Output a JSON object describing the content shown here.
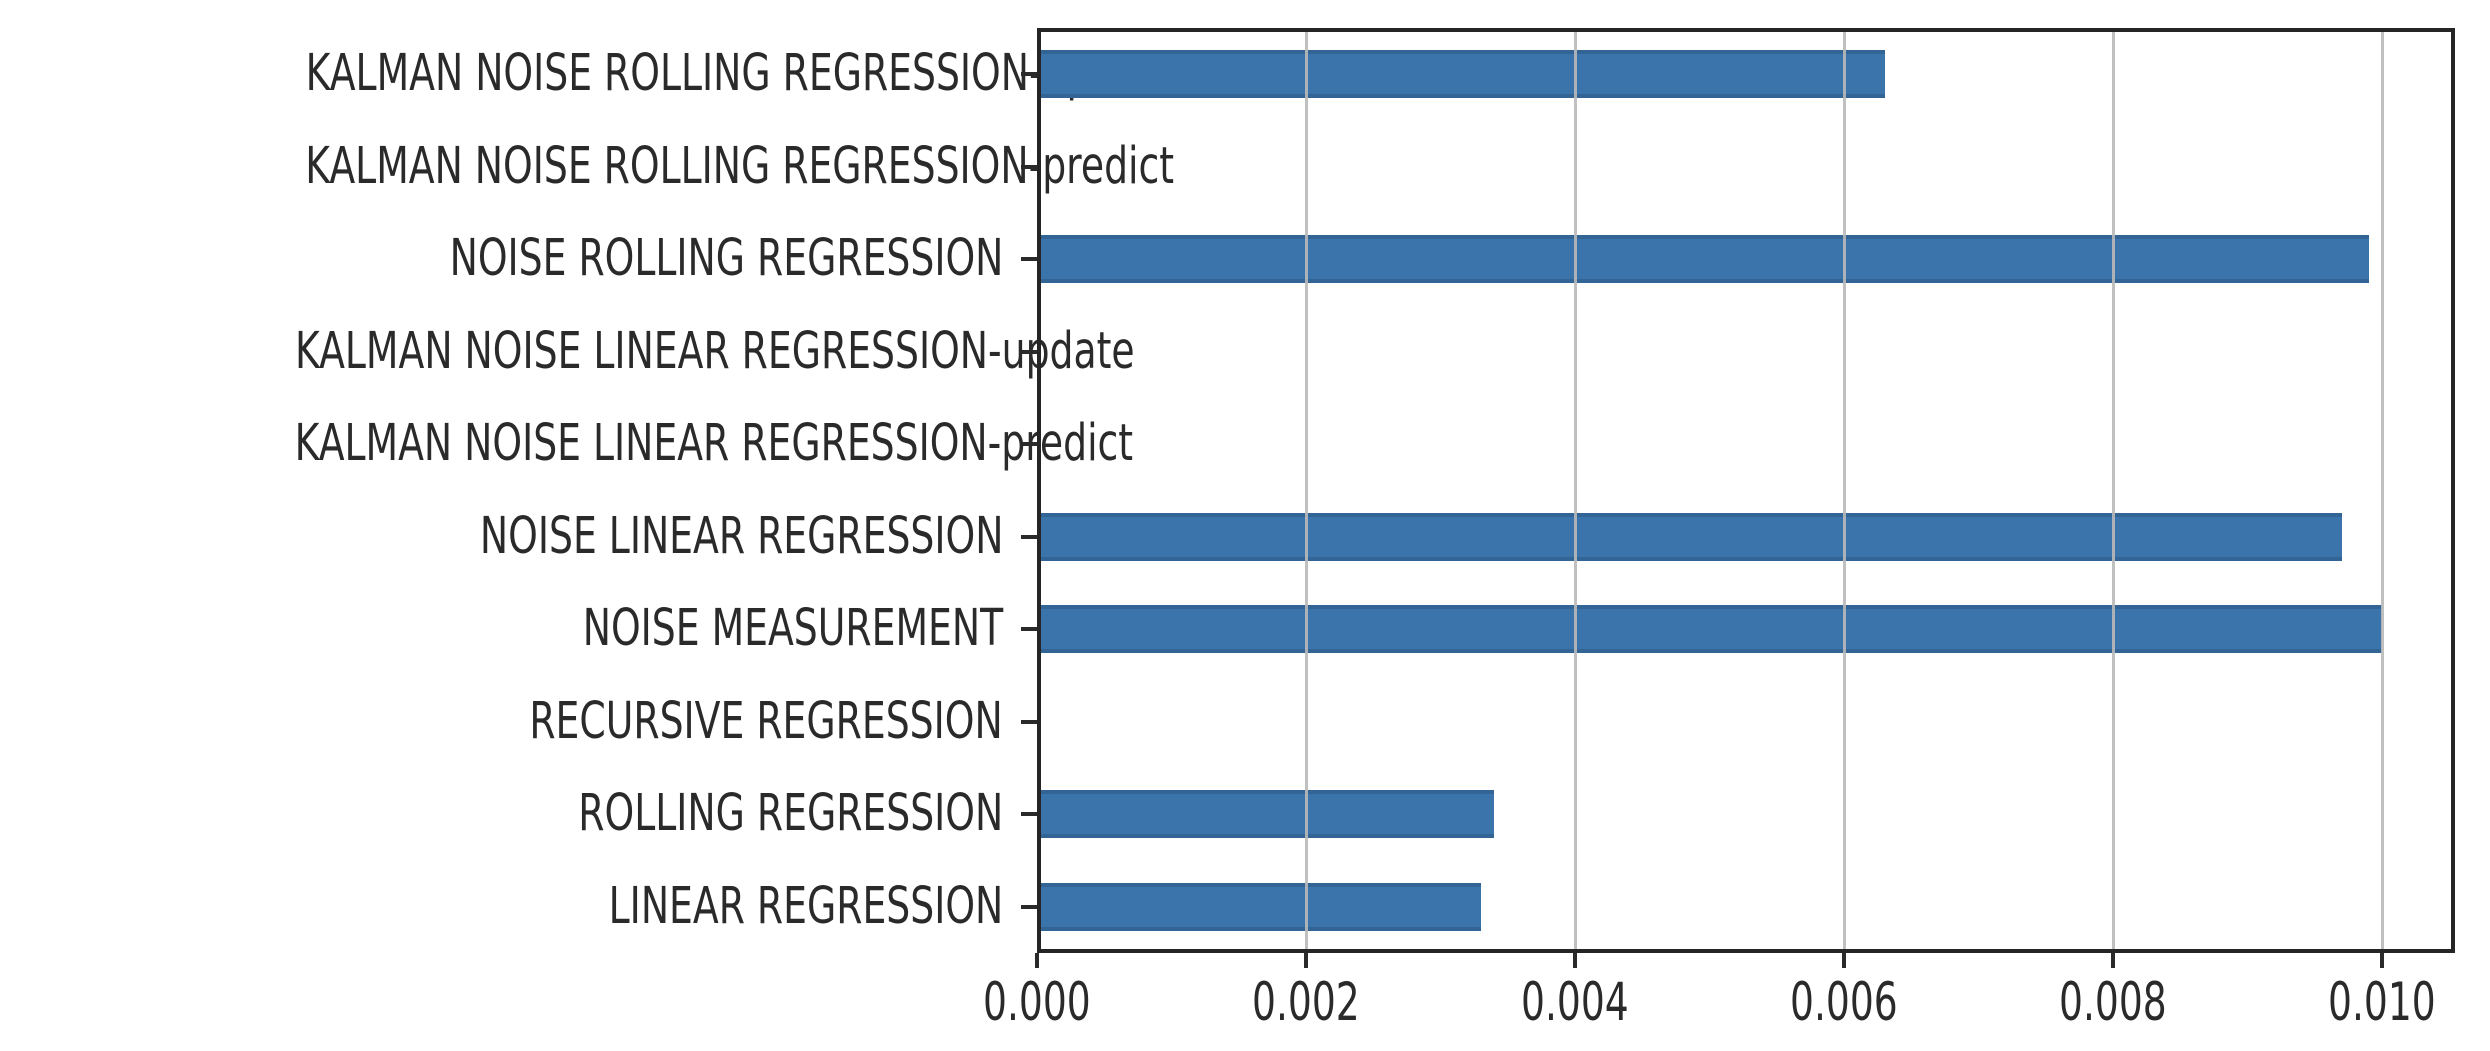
{
  "chart_data": {
    "type": "bar",
    "orientation": "horizontal",
    "title": "",
    "xlabel": "",
    "ylabel": "",
    "categories": [
      "KALMAN NOISE ROLLING REGRESSION-update",
      "KALMAN NOISE ROLLING REGRESSION-predict",
      "NOISE ROLLING REGRESSION",
      "KALMAN NOISE LINEAR REGRESSION-update",
      "KALMAN NOISE LINEAR REGRESSION-predict",
      "NOISE LINEAR REGRESSION",
      "NOISE MEASUREMENT",
      "RECURSIVE REGRESSION",
      "ROLLING REGRESSION",
      "LINEAR REGRESSION"
    ],
    "values": [
      0.0063,
      0.0,
      0.0099,
      0.0,
      0.0,
      0.0097,
      0.01,
      0.0,
      0.0034,
      0.0033
    ],
    "xlim": [
      0,
      0.01054
    ],
    "xticks": [
      0.0,
      0.002,
      0.004,
      0.006,
      0.008,
      0.01
    ],
    "xtick_labels": [
      "0.000",
      "0.002",
      "0.004",
      "0.006",
      "0.008",
      "0.010"
    ],
    "legend": "none",
    "grid": "vertical-gridlines-drawn-over-bars",
    "colors": {
      "bar": "#3b74ab",
      "grid": "#b9b9b9",
      "axis_border": "#252525",
      "tick": "#2a2a2a",
      "text": "#2a2a2a",
      "background": "#ffffff"
    }
  }
}
